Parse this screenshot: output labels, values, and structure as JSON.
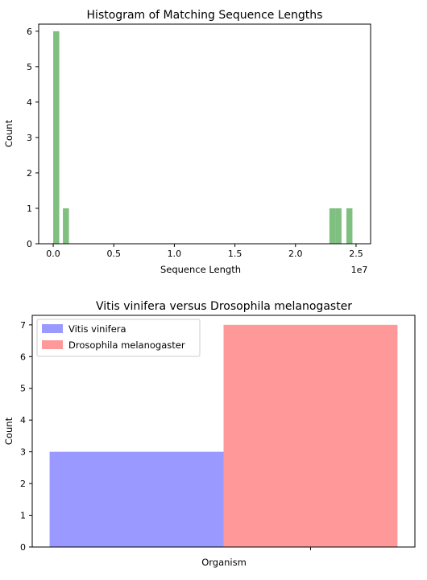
{
  "chart_data": [
    {
      "type": "bar",
      "title": "Histogram of Matching Sequence Lengths",
      "xlabel": "Sequence Length",
      "ylabel": "Count",
      "x_offset_label": "1e7",
      "xlim": [
        -0.12,
        2.62
      ],
      "ylim": [
        0,
        6.2
      ],
      "xticks": [
        0.0,
        0.5,
        1.0,
        1.5,
        2.0,
        2.5
      ],
      "xtick_labels": [
        "0.0",
        "0.5",
        "1.0",
        "1.5",
        "2.0",
        "2.5"
      ],
      "yticks": [
        0,
        1,
        2,
        3,
        4,
        5,
        6
      ],
      "ytick_labels": [
        "0",
        "1",
        "2",
        "3",
        "4",
        "5",
        "6"
      ],
      "color": "#7fbf7f",
      "grid": false,
      "bins": [
        {
          "x0": 0.0,
          "x1": 0.05,
          "count": 6
        },
        {
          "x0": 0.08,
          "x1": 0.13,
          "count": 1
        },
        {
          "x0": 2.28,
          "x1": 2.33,
          "count": 1
        },
        {
          "x0": 2.33,
          "x1": 2.38,
          "count": 1
        },
        {
          "x0": 2.42,
          "x1": 2.47,
          "count": 1
        }
      ]
    },
    {
      "type": "bar",
      "title": "Vitis vinifera versus Drosophila melanogaster",
      "xlabel": "Organism",
      "ylabel": "Count",
      "xlim": [
        -0.05,
        1.05
      ],
      "ylim": [
        0,
        7.3
      ],
      "xticks": [
        0.75
      ],
      "xtick_labels": [
        ""
      ],
      "yticks": [
        0,
        1,
        2,
        3,
        4,
        5,
        6,
        7
      ],
      "ytick_labels": [
        "0",
        "1",
        "2",
        "3",
        "4",
        "5",
        "6",
        "7"
      ],
      "legend_position": "top-left",
      "grid": false,
      "series": [
        {
          "name": "Vitis vinifera",
          "color": "#9999ff",
          "x0": 0.0,
          "x1": 0.5,
          "value": 3
        },
        {
          "name": "Drosophila melanogaster",
          "color": "#ff9999",
          "x0": 0.5,
          "x1": 1.0,
          "value": 7
        }
      ]
    }
  ]
}
